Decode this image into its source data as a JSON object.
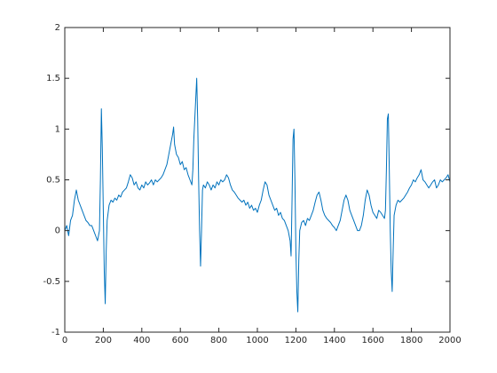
{
  "chart_data": {
    "type": "line",
    "color": "#0072bd",
    "grid": false,
    "box": true,
    "xlim": [
      0,
      2000
    ],
    "ylim": [
      -1,
      2
    ],
    "xticks": [
      0,
      200,
      400,
      600,
      800,
      1000,
      1200,
      1400,
      1600,
      1800,
      2000
    ],
    "yticks": [
      -1,
      -0.5,
      0,
      0.5,
      1,
      1.5,
      2
    ],
    "x": [
      0,
      10,
      20,
      30,
      40,
      50,
      60,
      70,
      80,
      90,
      100,
      110,
      120,
      130,
      140,
      150,
      160,
      170,
      180,
      185,
      190,
      195,
      200,
      205,
      210,
      215,
      220,
      230,
      240,
      250,
      260,
      270,
      280,
      290,
      300,
      310,
      320,
      330,
      340,
      350,
      360,
      370,
      380,
      390,
      400,
      410,
      420,
      430,
      440,
      450,
      460,
      470,
      480,
      490,
      500,
      510,
      520,
      530,
      540,
      550,
      560,
      565,
      570,
      580,
      590,
      600,
      610,
      620,
      630,
      640,
      650,
      660,
      665,
      670,
      680,
      685,
      690,
      695,
      700,
      705,
      710,
      715,
      720,
      730,
      740,
      750,
      760,
      770,
      780,
      790,
      800,
      810,
      820,
      830,
      840,
      850,
      860,
      870,
      880,
      890,
      900,
      910,
      920,
      930,
      940,
      950,
      960,
      970,
      980,
      990,
      1000,
      1010,
      1020,
      1030,
      1040,
      1050,
      1060,
      1070,
      1080,
      1090,
      1100,
      1110,
      1120,
      1130,
      1140,
      1150,
      1160,
      1170,
      1175,
      1180,
      1185,
      1190,
      1195,
      1200,
      1205,
      1210,
      1215,
      1220,
      1230,
      1240,
      1250,
      1260,
      1270,
      1280,
      1290,
      1300,
      1310,
      1320,
      1330,
      1340,
      1350,
      1360,
      1370,
      1380,
      1390,
      1400,
      1410,
      1420,
      1430,
      1440,
      1450,
      1460,
      1470,
      1480,
      1490,
      1500,
      1510,
      1520,
      1530,
      1540,
      1550,
      1560,
      1570,
      1580,
      1590,
      1600,
      1610,
      1620,
      1630,
      1640,
      1650,
      1660,
      1665,
      1670,
      1675,
      1680,
      1685,
      1690,
      1695,
      1700,
      1705,
      1710,
      1720,
      1730,
      1740,
      1750,
      1760,
      1770,
      1780,
      1790,
      1800,
      1810,
      1820,
      1830,
      1840,
      1850,
      1860,
      1870,
      1880,
      1890,
      1900,
      1910,
      1920,
      1930,
      1940,
      1950,
      1960,
      1970,
      1980,
      1990,
      2000
    ],
    "values": [
      0.0,
      0.05,
      -0.05,
      0.1,
      0.15,
      0.3,
      0.4,
      0.3,
      0.25,
      0.2,
      0.15,
      0.1,
      0.08,
      0.05,
      0.05,
      0.0,
      -0.05,
      -0.1,
      0.0,
      0.5,
      1.2,
      0.8,
      0.2,
      -0.4,
      -0.72,
      -0.2,
      0.1,
      0.25,
      0.3,
      0.28,
      0.32,
      0.3,
      0.35,
      0.33,
      0.38,
      0.4,
      0.42,
      0.48,
      0.55,
      0.52,
      0.45,
      0.48,
      0.42,
      0.4,
      0.45,
      0.42,
      0.48,
      0.45,
      0.47,
      0.5,
      0.45,
      0.5,
      0.48,
      0.5,
      0.52,
      0.55,
      0.6,
      0.65,
      0.75,
      0.85,
      0.95,
      1.02,
      0.85,
      0.75,
      0.72,
      0.65,
      0.68,
      0.6,
      0.62,
      0.55,
      0.5,
      0.45,
      0.6,
      0.9,
      1.3,
      1.5,
      1.1,
      0.5,
      0.0,
      -0.35,
      0.0,
      0.4,
      0.45,
      0.42,
      0.48,
      0.45,
      0.4,
      0.45,
      0.42,
      0.48,
      0.45,
      0.5,
      0.48,
      0.5,
      0.55,
      0.52,
      0.45,
      0.4,
      0.38,
      0.35,
      0.32,
      0.3,
      0.28,
      0.3,
      0.25,
      0.28,
      0.22,
      0.25,
      0.2,
      0.22,
      0.18,
      0.25,
      0.3,
      0.4,
      0.48,
      0.45,
      0.35,
      0.3,
      0.25,
      0.2,
      0.22,
      0.15,
      0.18,
      0.12,
      0.1,
      0.05,
      0.0,
      -0.1,
      -0.25,
      0.3,
      0.9,
      1.0,
      0.5,
      -0.2,
      -0.6,
      -0.8,
      -0.3,
      0.0,
      0.08,
      0.1,
      0.05,
      0.12,
      0.1,
      0.15,
      0.2,
      0.28,
      0.35,
      0.38,
      0.3,
      0.2,
      0.15,
      0.12,
      0.1,
      0.08,
      0.05,
      0.03,
      0.0,
      0.05,
      0.1,
      0.2,
      0.3,
      0.35,
      0.3,
      0.2,
      0.15,
      0.1,
      0.05,
      0.0,
      0.0,
      0.05,
      0.15,
      0.3,
      0.4,
      0.35,
      0.25,
      0.18,
      0.15,
      0.12,
      0.2,
      0.18,
      0.15,
      0.12,
      0.2,
      0.6,
      1.1,
      1.15,
      0.6,
      0.0,
      -0.4,
      -0.6,
      -0.2,
      0.15,
      0.25,
      0.3,
      0.28,
      0.3,
      0.32,
      0.35,
      0.38,
      0.42,
      0.45,
      0.5,
      0.48,
      0.52,
      0.55,
      0.6,
      0.5,
      0.48,
      0.45,
      0.42,
      0.45,
      0.48,
      0.5,
      0.42,
      0.45,
      0.5,
      0.48,
      0.5,
      0.52,
      0.55,
      0.48
    ]
  }
}
